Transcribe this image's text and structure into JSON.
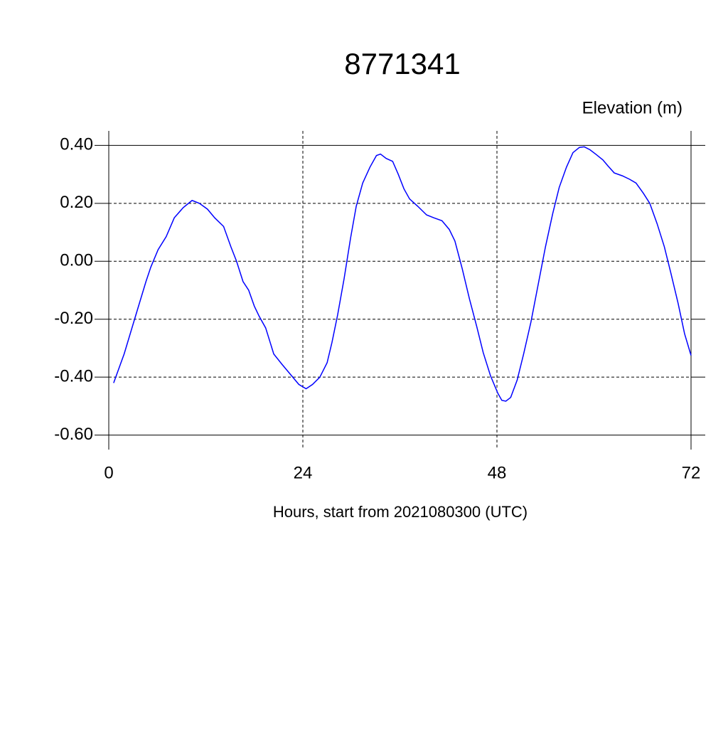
{
  "chart_data": {
    "type": "line",
    "title": "8771341",
    "subtitle": "Elevation (m)",
    "x_label": "Hours, start from 2021080300 (UTC)",
    "x": [
      0.6,
      1.9,
      3.3,
      4.6,
      5.2,
      6.1,
      7.1,
      8.1,
      9.2,
      10.3,
      11.2,
      12.2,
      13.1,
      14.2,
      15.1,
      15.8,
      16.6,
      17.3,
      18.0,
      18.6,
      19.4,
      20.4,
      21.4,
      22.6,
      23.5,
      24.4,
      25.2,
      26.1,
      27.0,
      27.6,
      28.3,
      29.1,
      29.9,
      30.6,
      31.4,
      32.3,
      33.1,
      33.6,
      34.3,
      35.1,
      35.8,
      36.5,
      37.2,
      38.2,
      39.3,
      40.2,
      41.2,
      42.1,
      42.8,
      43.7,
      44.6,
      45.5,
      46.3,
      47.2,
      48.1,
      48.6,
      49.1,
      49.7,
      50.5,
      51.3,
      52.2,
      53.1,
      54.0,
      54.9,
      55.7,
      56.6,
      57.4,
      58.2,
      58.8,
      59.5,
      60.2,
      61.1,
      61.7,
      62.5,
      63.5,
      64.4,
      65.2,
      66.1,
      66.9,
      67.8,
      68.7,
      69.5,
      70.4,
      71.2,
      72.0
    ],
    "series": [
      {
        "name": "Elevation",
        "color": "#0000ff",
        "values": [
          -0.42,
          -0.32,
          -0.19,
          -0.07,
          -0.02,
          0.04,
          0.085,
          0.15,
          0.185,
          0.21,
          0.2,
          0.18,
          0.15,
          0.12,
          0.05,
          0.0,
          -0.07,
          -0.1,
          -0.155,
          -0.19,
          -0.23,
          -0.32,
          -0.355,
          -0.395,
          -0.425,
          -0.44,
          -0.425,
          -0.4,
          -0.35,
          -0.28,
          -0.185,
          -0.06,
          0.08,
          0.19,
          0.27,
          0.325,
          0.365,
          0.37,
          0.355,
          0.345,
          0.3,
          0.25,
          0.215,
          0.19,
          0.16,
          0.15,
          0.14,
          0.11,
          0.07,
          -0.025,
          -0.13,
          -0.225,
          -0.315,
          -0.395,
          -0.455,
          -0.48,
          -0.483,
          -0.47,
          -0.41,
          -0.32,
          -0.21,
          -0.08,
          0.05,
          0.165,
          0.255,
          0.325,
          0.375,
          0.393,
          0.395,
          0.385,
          0.37,
          0.35,
          0.33,
          0.305,
          0.295,
          0.283,
          0.27,
          0.235,
          0.2,
          0.13,
          0.05,
          -0.04,
          -0.145,
          -0.25,
          -0.325
        ]
      }
    ],
    "xlim": [
      0,
      72
    ],
    "xticks": [
      0,
      24,
      48,
      72
    ],
    "ylim": [
      -0.65,
      0.45
    ],
    "yticks": [
      {
        "value": -0.6,
        "label": "-0.60"
      },
      {
        "value": -0.4,
        "label": "-0.40"
      },
      {
        "value": -0.2,
        "label": "-0.20"
      },
      {
        "value": 0,
        "label": "0.00"
      },
      {
        "value": 0.2,
        "label": "0.20"
      },
      {
        "value": 0.4,
        "label": "0.40"
      }
    ],
    "grid": true
  }
}
